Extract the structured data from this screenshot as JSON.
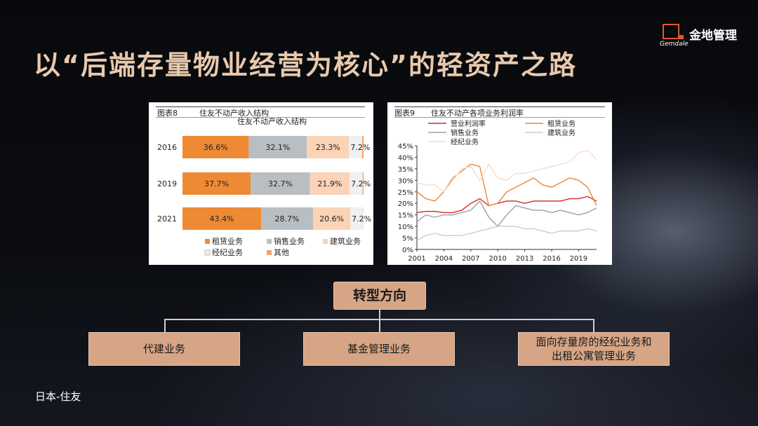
{
  "slide": {
    "title": "以“后端存量物业经营为核心”的轻资产之路",
    "logo": {
      "name_cn": "金地管理",
      "name_en": "Gemdale"
    },
    "footer": "日本-住友"
  },
  "transform": {
    "center_label": "转型方向",
    "items": [
      "代建业务",
      "基金管理业务",
      "面向存量房的经纪业务和\n出租公寓管理业务"
    ]
  },
  "chart_data": [
    {
      "type": "bar",
      "orientation": "horizontal",
      "stacked": true,
      "figure_label": "图表8",
      "figure_title": "住友不动产收入结构",
      "title": "住友不动产收入结构",
      "categories": [
        "2016",
        "2019",
        "2021"
      ],
      "series": [
        {
          "name": "租赁业务",
          "values": [
            36.6,
            37.7,
            43.4
          ],
          "labels": [
            "36.6%",
            "37.7%",
            "43.4%"
          ],
          "color": "#ee8a34"
        },
        {
          "name": "销售业务",
          "values": [
            32.1,
            32.7,
            28.7
          ],
          "labels": [
            "32.1%",
            "32.7%",
            "28.7%"
          ],
          "color": "#b9bec3"
        },
        {
          "name": "建筑业务",
          "values": [
            23.3,
            21.9,
            20.6
          ],
          "labels": [
            "23.3%",
            "21.9%",
            "20.6%"
          ],
          "color": "#fbd3b6"
        },
        {
          "name": "经纪业务",
          "values": [
            7.2,
            7.2,
            7.2
          ],
          "labels": [
            "7.2%",
            "7.2%",
            "7.2%"
          ],
          "color": "#eef0f2"
        },
        {
          "name": "其他",
          "values": [
            0.8,
            0.5,
            0.1
          ],
          "color": "#f2a26a"
        }
      ],
      "legend": "bottom"
    },
    {
      "type": "line",
      "figure_label": "图表9",
      "figure_title": "住友不动产各项业务利润率",
      "x": [
        2001,
        2002,
        2003,
        2004,
        2005,
        2006,
        2007,
        2008,
        2009,
        2010,
        2011,
        2012,
        2013,
        2014,
        2015,
        2016,
        2017,
        2018,
        2019,
        2020,
        2021
      ],
      "x_ticks": [
        "2001",
        "2004",
        "2007",
        "2010",
        "2013",
        "2016",
        "2019"
      ],
      "y_ticks": [
        "0%",
        "5%",
        "10%",
        "15%",
        "20%",
        "25%",
        "30%",
        "35%",
        "40%",
        "45%"
      ],
      "ylim": [
        0,
        45
      ],
      "series": [
        {
          "name": "营业利润率",
          "color": "#d42a2a",
          "values": [
            16,
            16.5,
            16.5,
            16,
            16,
            17,
            20,
            22,
            19,
            20,
            21,
            21,
            20,
            21,
            21,
            21,
            21,
            22,
            22,
            23,
            21
          ]
        },
        {
          "name": "租赁业务",
          "color": "#e8883a",
          "values": [
            25,
            22,
            21,
            25,
            31,
            34,
            37,
            36,
            19,
            20,
            25,
            27,
            29,
            31,
            28,
            27,
            29,
            31,
            30,
            27,
            19
          ]
        },
        {
          "name": "销售业务",
          "color": "#9aa0a8",
          "values": [
            12,
            15,
            14,
            15,
            15,
            16,
            17,
            21,
            14,
            10,
            15,
            19,
            18,
            17,
            17,
            16,
            17,
            16,
            15,
            16,
            18
          ]
        },
        {
          "name": "建筑业务",
          "color": "#c9cdd4",
          "values": [
            4,
            6,
            7,
            6,
            6,
            6,
            7,
            8,
            9,
            10,
            10,
            10,
            9,
            9,
            8,
            7,
            8,
            8,
            8,
            9,
            8
          ]
        },
        {
          "name": "经纪业务",
          "color": "#f5dccb",
          "values": [
            29,
            28,
            28,
            25,
            30,
            35,
            36,
            30,
            37,
            31,
            30,
            33,
            33,
            34,
            35,
            36,
            37,
            38,
            42,
            43,
            39
          ]
        }
      ],
      "legend": "top"
    }
  ]
}
